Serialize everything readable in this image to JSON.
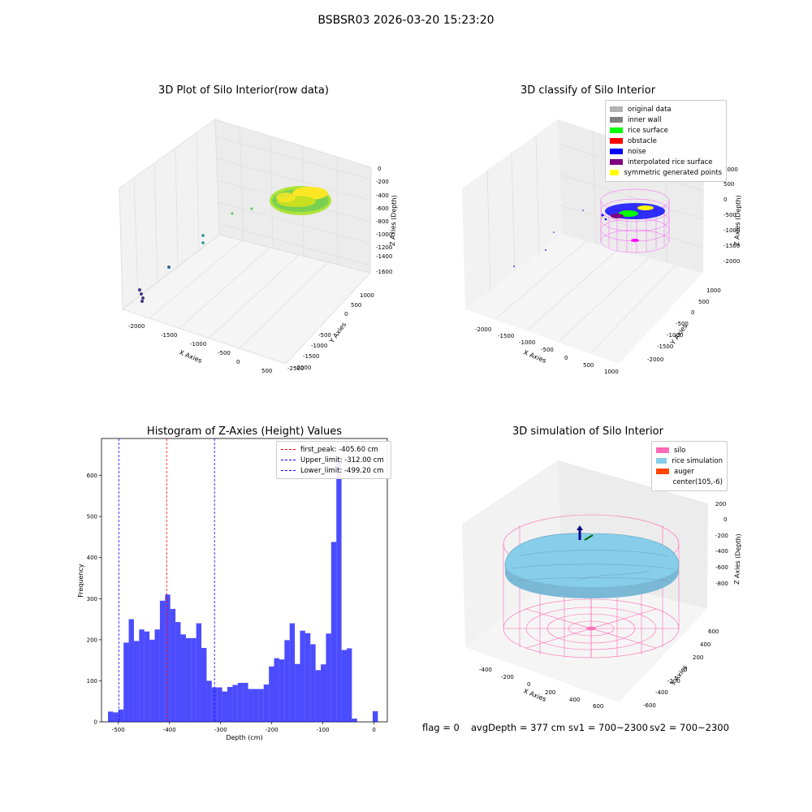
{
  "figure": {
    "suptitle": "BSBSR03 2026-03-20 15:23:20",
    "footer": {
      "flag": "flag = 0",
      "avg": "avgDepth = 377 cm",
      "sv1": "sv1 = 700~2300",
      "sv2": "sv2 = 700~2300"
    }
  },
  "colors": {
    "original": "#b3b3b3",
    "inner_wall": "#808080",
    "rice_surface": "#00ff00",
    "obstacle": "#ff0000",
    "noise": "#0000ff",
    "interpolated": "#800080",
    "symmetric": "#ffff00",
    "silo": "#ff69b4",
    "rice_sim": "#87ceeb",
    "auger": "#ff4500",
    "hist_bar": "#0000ff",
    "peak_line": "#ff0000",
    "limit_line": "#0000ff"
  },
  "chart_data": [
    {
      "type": "scatter",
      "title": "3D Plot of Silo Interior(row data)",
      "xlabel": "X Axies",
      "ylabel": "Y Axies",
      "zlabel": "Z Axies (Depth)",
      "xticks": [
        "-2000",
        "-1500",
        "-1000",
        "-500",
        "0",
        "500"
      ],
      "yticks": [
        "1000",
        "500",
        "0",
        "-500",
        "-1000",
        "-1500",
        "-2000",
        "-2500"
      ],
      "zticks": [
        "0",
        "-200",
        "-400",
        "-600",
        "-800",
        "-1000",
        "-1200",
        "-1400",
        "-1600"
      ]
    },
    {
      "type": "scatter",
      "title": "3D classify of Silo Interior",
      "xlabel": "X Axies",
      "ylabel": "Y Axies",
      "zlabel": "Z Axies (Depth)",
      "xticks": [
        "-2000",
        "-1500",
        "-1000",
        "-500",
        "0",
        "500",
        "1000"
      ],
      "yticks": [
        "1000",
        "500",
        "0",
        "-500",
        "-1000",
        "-1500",
        "-2000"
      ],
      "zticks": [
        "1000",
        "500",
        "0",
        "-500",
        "-1000",
        "-1500",
        "-2000"
      ],
      "legend": [
        "original data",
        "inner wall",
        "rice surface",
        "obstacle",
        "noise",
        "interpolated rice surface",
        "symmetric generated points"
      ]
    },
    {
      "type": "bar",
      "title": "Histogram of Z-Axies (Height) Values",
      "xlabel": "Depth (cm)",
      "ylabel": "Frequency",
      "xlim": [
        -533,
        26
      ],
      "ylim": [
        0,
        690
      ],
      "xticks": [
        -500,
        -400,
        -300,
        -200,
        -100,
        0
      ],
      "yticks": [
        0,
        100,
        200,
        300,
        400,
        500,
        600
      ],
      "bin_width": 10.15,
      "bin_starts": [
        -520.3,
        -510.15,
        -500.0,
        -489.85,
        -479.7,
        -469.55,
        -459.4,
        -449.25,
        -439.1,
        -428.95,
        -418.8,
        -408.65,
        -398.5,
        -388.35,
        -378.2,
        -368.05,
        -357.9,
        -347.75,
        -337.6,
        -327.45,
        -317.3,
        -307.15,
        -297.0,
        -286.85,
        -276.7,
        -266.55,
        -256.4,
        -246.25,
        -236.1,
        -225.95,
        -215.8,
        -205.65,
        -195.5,
        -185.35,
        -175.2,
        -165.05,
        -154.9,
        -144.75,
        -134.6,
        -124.45,
        -114.3,
        -104.15,
        -94.0,
        -83.85,
        -73.7,
        -63.55,
        -53.4,
        -43.25,
        -33.1,
        -22.95,
        -12.8,
        -2.65
      ],
      "values": [
        25,
        23,
        30,
        193,
        250,
        197,
        225,
        220,
        200,
        225,
        295,
        310,
        275,
        243,
        213,
        204,
        204,
        240,
        180,
        100,
        84,
        84,
        74,
        85,
        90,
        95,
        95,
        80,
        80,
        80,
        91,
        135,
        155,
        152,
        199,
        240,
        141,
        222,
        216,
        189,
        126,
        140,
        215,
        438,
        645,
        175,
        179,
        8,
        0,
        0,
        0,
        26
      ],
      "vlines": [
        {
          "label": "first_peak: -405.60 cm",
          "x": -405.6,
          "style": "peak"
        },
        {
          "label": "Upper_limit: -312.00 cm",
          "x": -312.0,
          "style": "limit"
        },
        {
          "label": "Lower_limit: -499.20 cm",
          "x": -499.2,
          "style": "limit"
        }
      ]
    },
    {
      "type": "scatter",
      "title": "3D simulation of Silo Interior",
      "xlabel": "X Axies",
      "ylabel": "Y Axies",
      "zlabel": "Z Axies (Depth)",
      "xticks": [
        "-400",
        "-200",
        "0",
        "200",
        "400",
        "600"
      ],
      "yticks": [
        "600",
        "400",
        "200",
        "0",
        "-200",
        "-400",
        "-600"
      ],
      "zticks": [
        "200",
        "0",
        "-200",
        "-400",
        "-600",
        "-800"
      ],
      "legend": [
        "silo",
        "rice simulation",
        "auger",
        "center(105,-6)"
      ]
    }
  ]
}
